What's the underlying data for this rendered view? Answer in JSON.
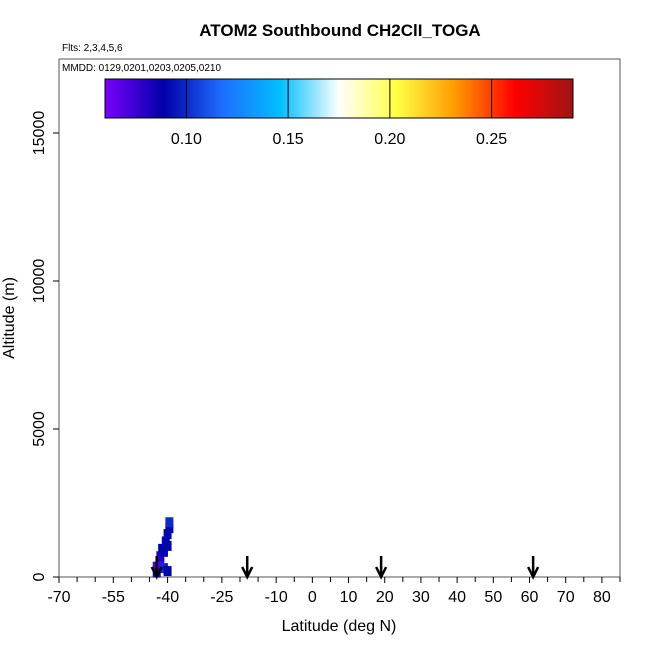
{
  "chart_data": {
    "type": "scatter",
    "title": "ATOM2 Southbound CH2ClI_TOGA",
    "flights_note": "Flts: 2,3,4,5,6",
    "mmdd_note": "MMDD: 0129,0201,0203,0205,0210",
    "xlabel": "Latitude (deg N)",
    "ylabel": "Altitude (m)",
    "xlim": [
      -70,
      85
    ],
    "ylim": [
      0,
      17500
    ],
    "x_tick_labels": [
      "-70",
      "-55",
      "-40",
      "-25",
      "-10",
      "0",
      "10",
      "20",
      "30",
      "40",
      "50",
      "60",
      "70",
      "80"
    ],
    "x_tick_values": [
      -70,
      -55,
      -40,
      -25,
      -10,
      0,
      10,
      20,
      30,
      40,
      50,
      60,
      70,
      80
    ],
    "x_minor_ticks": [
      -65,
      -60,
      -50,
      -45,
      -35,
      -30,
      -20,
      -15,
      -5,
      5,
      15,
      25,
      35,
      45,
      55,
      65,
      75,
      85
    ],
    "y_tick_labels": [
      "0",
      "5000",
      "10000",
      "15000"
    ],
    "y_tick_values": [
      0,
      5000,
      10000,
      15000
    ],
    "colorbar": {
      "min": 0.06,
      "max": 0.29,
      "tick_values": [
        0.1,
        0.15,
        0.2,
        0.25
      ],
      "tick_labels": [
        "0.10",
        "0.15",
        "0.20",
        "0.25"
      ],
      "colors": [
        "#7a00ff",
        "#0000a8",
        "#1e6eff",
        "#00bfff",
        "#ffffff",
        "#ffff40",
        "#ff9900",
        "#ff0000",
        "#a01414"
      ]
    },
    "arrows_latitude": [
      -43,
      -18,
      19,
      61
    ],
    "points": [
      {
        "lat": -43,
        "alt": 350,
        "value": 0.07
      },
      {
        "lat": -43,
        "alt": 150,
        "value": 0.08
      },
      {
        "lat": -42,
        "alt": 450,
        "value": 0.07
      },
      {
        "lat": -42,
        "alt": 700,
        "value": 0.08
      },
      {
        "lat": -41.5,
        "alt": 950,
        "value": 0.09
      },
      {
        "lat": -41,
        "alt": 850,
        "value": 0.09
      },
      {
        "lat": -41,
        "alt": 300,
        "value": 0.1
      },
      {
        "lat": -40.5,
        "alt": 1200,
        "value": 0.09
      },
      {
        "lat": -40,
        "alt": 1450,
        "value": 0.09
      },
      {
        "lat": -40,
        "alt": 1050,
        "value": 0.09
      },
      {
        "lat": -39.5,
        "alt": 1650,
        "value": 0.09
      },
      {
        "lat": -39.5,
        "alt": 1850,
        "value": 0.1
      },
      {
        "lat": -40,
        "alt": 200,
        "value": 0.09
      }
    ]
  }
}
